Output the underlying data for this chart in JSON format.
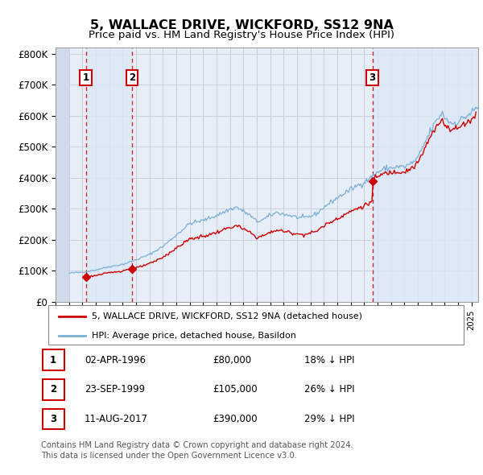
{
  "title": "5, WALLACE DRIVE, WICKFORD, SS12 9NA",
  "subtitle": "Price paid vs. HM Land Registry's House Price Index (HPI)",
  "title_fontsize": 11.5,
  "subtitle_fontsize": 9.5,
  "ylabel_ticks": [
    "£0",
    "£100K",
    "£200K",
    "£300K",
    "£400K",
    "£500K",
    "£600K",
    "£700K",
    "£800K"
  ],
  "ytick_values": [
    0,
    100000,
    200000,
    300000,
    400000,
    500000,
    600000,
    700000,
    800000
  ],
  "ylim": [
    0,
    820000
  ],
  "xlim_start": 1994.0,
  "xlim_end": 2025.5,
  "hpi_color": "#7bafd4",
  "price_color": "#cc0000",
  "background_color": "#e8eef8",
  "shade_color": "#dce8f5",
  "hatch_color": "#d0dae8",
  "grid_color": "#c8d0e0",
  "transactions": [
    {
      "year": 1996.25,
      "price": 80000,
      "label": "1"
    },
    {
      "year": 1999.72,
      "price": 105000,
      "label": "2"
    },
    {
      "year": 2017.61,
      "price": 390000,
      "label": "3"
    }
  ],
  "legend_entries": [
    "5, WALLACE DRIVE, WICKFORD, SS12 9NA (detached house)",
    "HPI: Average price, detached house, Basildon"
  ],
  "table_rows": [
    {
      "num": "1",
      "date": "02-APR-1996",
      "price": "£80,000",
      "hpi": "18% ↓ HPI"
    },
    {
      "num": "2",
      "date": "23-SEP-1999",
      "price": "£105,000",
      "hpi": "26% ↓ HPI"
    },
    {
      "num": "3",
      "date": "11-AUG-2017",
      "price": "£390,000",
      "hpi": "29% ↓ HPI"
    }
  ],
  "footer": "Contains HM Land Registry data © Crown copyright and database right 2024.\nThis data is licensed under the Open Government Licence v3.0."
}
